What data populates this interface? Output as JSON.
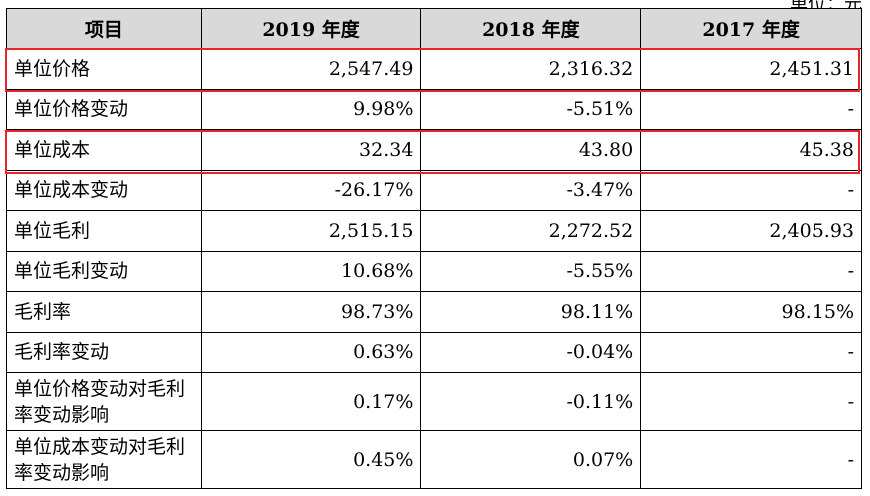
{
  "unit_note": "单位：元",
  "header": [
    "项目",
    "2019 年度",
    "2018 年度",
    "2017 年度"
  ],
  "rows": [
    {
      "label": "单位价格",
      "v2019": "2,547.49",
      "v2018": "2,316.32",
      "v2017": "2,451.31"
    },
    {
      "label": "单位价格变动",
      "v2019": "9.98%",
      "v2018": "-5.51%",
      "v2017": "-"
    },
    {
      "label": "单位成本",
      "v2019": "32.34",
      "v2018": "43.80",
      "v2017": "45.38"
    },
    {
      "label": "单位成本变动",
      "v2019": "-26.17%",
      "v2018": "-3.47%",
      "v2017": "-"
    },
    {
      "label": "单位毛利",
      "v2019": "2,515.15",
      "v2018": "2,272.52",
      "v2017": "2,405.93"
    },
    {
      "label": "单位毛利变动",
      "v2019": "10.68%",
      "v2018": "-5.55%",
      "v2017": "-"
    },
    {
      "label": "毛利率",
      "v2019": "98.73%",
      "v2018": "98.11%",
      "v2017": "98.15%"
    },
    {
      "label": "毛利率变动",
      "v2019": "0.63%",
      "v2018": "-0.04%",
      "v2017": "-"
    },
    {
      "label": "单位价格变动对毛利率变动影响",
      "v2019": "0.17%",
      "v2018": "-0.11%",
      "v2017": "-"
    },
    {
      "label": "单位成本变动对毛利率变动影响",
      "v2019": "0.45%",
      "v2018": "0.07%",
      "v2017": "-"
    }
  ],
  "highlight_color": "#e8242d"
}
